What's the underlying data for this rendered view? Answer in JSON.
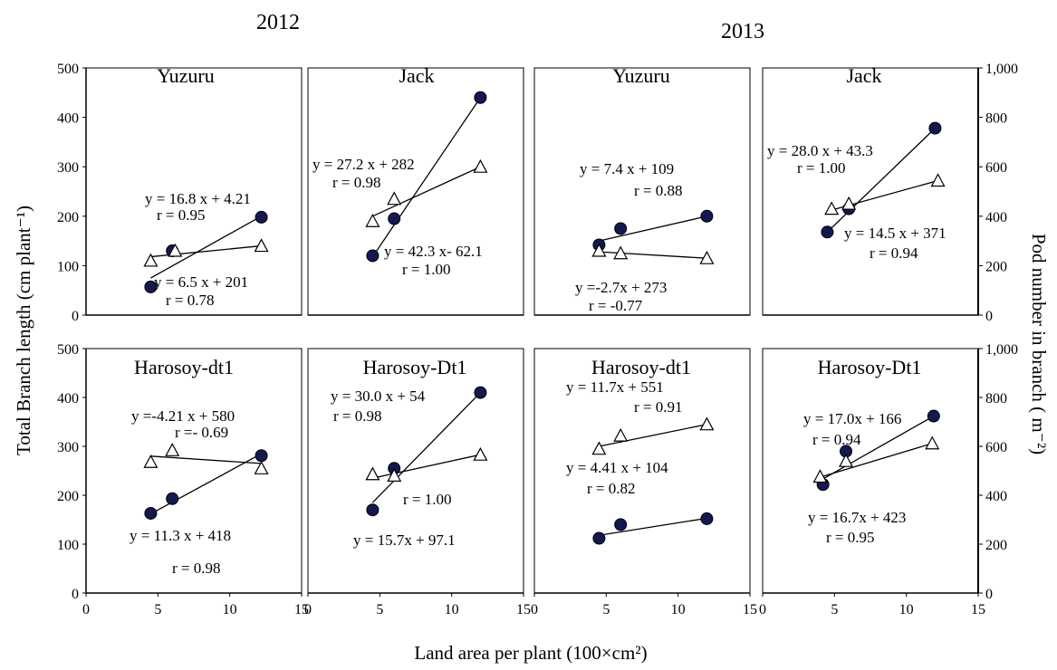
{
  "figure": {
    "years": [
      "2012",
      "2013"
    ],
    "xlabel": "Land  area per plant (100×cm²)",
    "ylabel_left": "Total Branch length (cm plant⁻¹)",
    "ylabel_right": "Pod  number in branch ( m⁻²)"
  },
  "axes": {
    "x_ticks": [
      "0",
      "5",
      "10",
      "15"
    ],
    "y_left_ticks": [
      "0",
      "100",
      "200",
      "300",
      "400",
      "500"
    ],
    "y_right_ticks": [
      "0",
      "200",
      "400",
      "600",
      "800",
      "1,000"
    ]
  },
  "chart_data": [
    {
      "type": "scatter",
      "year": "2012",
      "title": "Yuzuru",
      "xlim": [
        0,
        15
      ],
      "ylim": [
        0,
        500
      ],
      "y2lim": [
        0,
        1000
      ],
      "series": [
        {
          "marker": "filled-circle",
          "axis": "left",
          "x": [
            4.5,
            6.0,
            12.2
          ],
          "y": [
            57,
            130,
            198
          ],
          "fit": {
            "x": [
              4.5,
              12.2
            ],
            "y": [
              75,
              200
            ]
          },
          "equation": [
            "y = 16.8 x + 4.21",
            "r = 0.95"
          ]
        },
        {
          "marker": "open-triangle",
          "axis": "left",
          "x": [
            4.5,
            6.2,
            12.2
          ],
          "y": [
            110,
            130,
            140
          ],
          "fit": {
            "x": [
              4.5,
              12.2
            ],
            "y": [
              118,
              140
            ]
          },
          "equation": [
            "y = 6.5 x + 201",
            "r = 0.78"
          ]
        }
      ]
    },
    {
      "type": "scatter",
      "year": "2012",
      "title": "Jack",
      "xlim": [
        0,
        15
      ],
      "ylim": [
        0,
        500
      ],
      "y2lim": [
        0,
        1000
      ],
      "series": [
        {
          "marker": "filled-circle",
          "axis": "left",
          "x": [
            4.5,
            6.0,
            12.0
          ],
          "y": [
            120,
            195,
            440
          ],
          "fit": {
            "x": [
              4.5,
              12.0
            ],
            "y": [
              118,
              440
            ]
          },
          "equation": [
            "y = 42.3 x- 62.1",
            "r = 1.00"
          ]
        },
        {
          "marker": "open-triangle",
          "axis": "left",
          "x": [
            4.5,
            6.0,
            12.0
          ],
          "y": [
            190,
            235,
            300
          ],
          "fit": {
            "x": [
              4.5,
              12.0
            ],
            "y": [
              200,
              300
            ]
          },
          "equation": [
            "y = 27.2 x + 282",
            "r = 0.98"
          ]
        }
      ]
    },
    {
      "type": "scatter",
      "year": "2013",
      "title": "Yuzuru",
      "xlim": [
        0,
        15
      ],
      "ylim": [
        0,
        500
      ],
      "y2lim": [
        0,
        1000
      ],
      "series": [
        {
          "marker": "filled-circle",
          "axis": "left",
          "x": [
            4.5,
            6.0,
            12.0
          ],
          "y": [
            142,
            175,
            200
          ],
          "fit": {
            "x": [
              4.5,
              12.0
            ],
            "y": [
              150,
              200
            ]
          },
          "equation": [
            "y = 7.4 x + 109",
            "r = 0.88"
          ]
        },
        {
          "marker": "open-triangle",
          "axis": "left",
          "x": [
            4.5,
            6.0,
            12.0
          ],
          "y": [
            130,
            125,
            115
          ],
          "fit": {
            "x": [
              4.5,
              12.0
            ],
            "y": [
              128,
              115
            ]
          },
          "equation": [
            "y =-2.7x + 273",
            "r = -0.77"
          ]
        }
      ]
    },
    {
      "type": "scatter",
      "year": "2013",
      "title": "Jack",
      "xlim": [
        0,
        15
      ],
      "ylim": [
        0,
        500
      ],
      "y2lim": [
        0,
        1000
      ],
      "series": [
        {
          "marker": "filled-circle",
          "axis": "left",
          "x": [
            4.5,
            6.0,
            12.0
          ],
          "y": [
            168,
            215,
            378
          ],
          "fit": {
            "x": [
              4.5,
              12.0
            ],
            "y": [
              168,
              378
            ]
          },
          "equation": [
            "y = 28.0 x + 43.3",
            "r = 1.00"
          ]
        },
        {
          "marker": "open-triangle",
          "axis": "left",
          "x": [
            4.8,
            6.0,
            12.2
          ],
          "y": [
            215,
            225,
            272
          ],
          "fit": {
            "x": [
              4.5,
              12.2
            ],
            "y": [
              210,
              272
            ]
          },
          "equation": [
            "y = 14.5 x + 371",
            "r = 0.94"
          ]
        }
      ]
    },
    {
      "type": "scatter",
      "year": "2012",
      "title": "Harosoy-dt1",
      "xlim": [
        0,
        15
      ],
      "ylim": [
        0,
        500
      ],
      "y2lim": [
        0,
        1000
      ],
      "series": [
        {
          "marker": "filled-circle",
          "axis": "left",
          "x": [
            4.5,
            6.0,
            12.2
          ],
          "y": [
            163,
            193,
            281
          ],
          "fit": {
            "x": [
              4.5,
              12.2
            ],
            "y": [
              162,
              285
            ]
          },
          "equation": [
            "y = 11.3 x + 418",
            "r = 0.98"
          ]
        },
        {
          "marker": "open-triangle",
          "axis": "left",
          "x": [
            4.5,
            6.0,
            12.2
          ],
          "y": [
            268,
            292,
            255
          ],
          "fit": {
            "x": [
              4.5,
              12.2
            ],
            "y": [
              280,
              265
            ]
          },
          "equation": [
            "y =-4.21 x + 580",
            "r =- 0.69"
          ]
        }
      ]
    },
    {
      "type": "scatter",
      "year": "2012",
      "title": "Harosoy-Dt1",
      "xlim": [
        0,
        15
      ],
      "ylim": [
        0,
        500
      ],
      "y2lim": [
        0,
        1000
      ],
      "series": [
        {
          "marker": "filled-circle",
          "axis": "left",
          "x": [
            4.5,
            6.0,
            12.0
          ],
          "y": [
            170,
            255,
            410
          ],
          "fit": {
            "x": [
              4.5,
              12.0
            ],
            "y": [
              185,
              410
            ]
          },
          "equation": [
            "y = 30.0 x + 54",
            "r = 0.98"
          ]
        },
        {
          "marker": "open-triangle",
          "axis": "left",
          "x": [
            4.5,
            6.0,
            12.0
          ],
          "y": [
            243,
            240,
            283
          ],
          "fit": {
            "x": [
              4.5,
              12.0
            ],
            "y": [
              235,
              283
            ]
          },
          "equation": [
            "r = 1.00",
            "y = 15.7x + 97.1"
          ]
        }
      ]
    },
    {
      "type": "scatter",
      "year": "2013",
      "title": "Harosoy-dt1",
      "xlim": [
        0,
        15
      ],
      "ylim": [
        0,
        500
      ],
      "y2lim": [
        0,
        1000
      ],
      "series": [
        {
          "marker": "filled-circle",
          "axis": "left",
          "x": [
            4.5,
            6.0,
            12.0
          ],
          "y": [
            112,
            140,
            152
          ],
          "fit": {
            "x": [
              4.5,
              12.0
            ],
            "y": [
              118,
              153
            ]
          },
          "equation": [
            "y = 4.41 x + 104",
            "r = 0.82"
          ]
        },
        {
          "marker": "open-triangle",
          "axis": "left",
          "x": [
            4.5,
            6.0,
            12.0
          ],
          "y": [
            295,
            322,
            345
          ],
          "fit": {
            "x": [
              4.5,
              12.0
            ],
            "y": [
              300,
              345
            ]
          },
          "equation": [
            "y = 11.7x + 551",
            "r = 0.91"
          ]
        }
      ]
    },
    {
      "type": "scatter",
      "year": "2013",
      "title": "Harosoy-Dt1",
      "xlim": [
        0,
        15
      ],
      "ylim": [
        0,
        500
      ],
      "y2lim": [
        0,
        1000
      ],
      "series": [
        {
          "marker": "filled-circle",
          "axis": "left",
          "x": [
            4.2,
            5.8,
            11.9
          ],
          "y": [
            222,
            290,
            362
          ],
          "fit": {
            "x": [
              4.0,
              11.9
            ],
            "y": [
              230,
              362
            ]
          },
          "equation": [
            "y = 17.0x + 166",
            "r = 0.94"
          ]
        },
        {
          "marker": "open-triangle",
          "axis": "left",
          "x": [
            4.0,
            5.8,
            11.8
          ],
          "y": [
            238,
            270,
            306
          ],
          "fit": {
            "x": [
              4.0,
              11.8
            ],
            "y": [
              237,
              306
            ]
          },
          "equation": [
            "y = 16.7x + 423",
            "r = 0.95"
          ]
        }
      ]
    }
  ]
}
